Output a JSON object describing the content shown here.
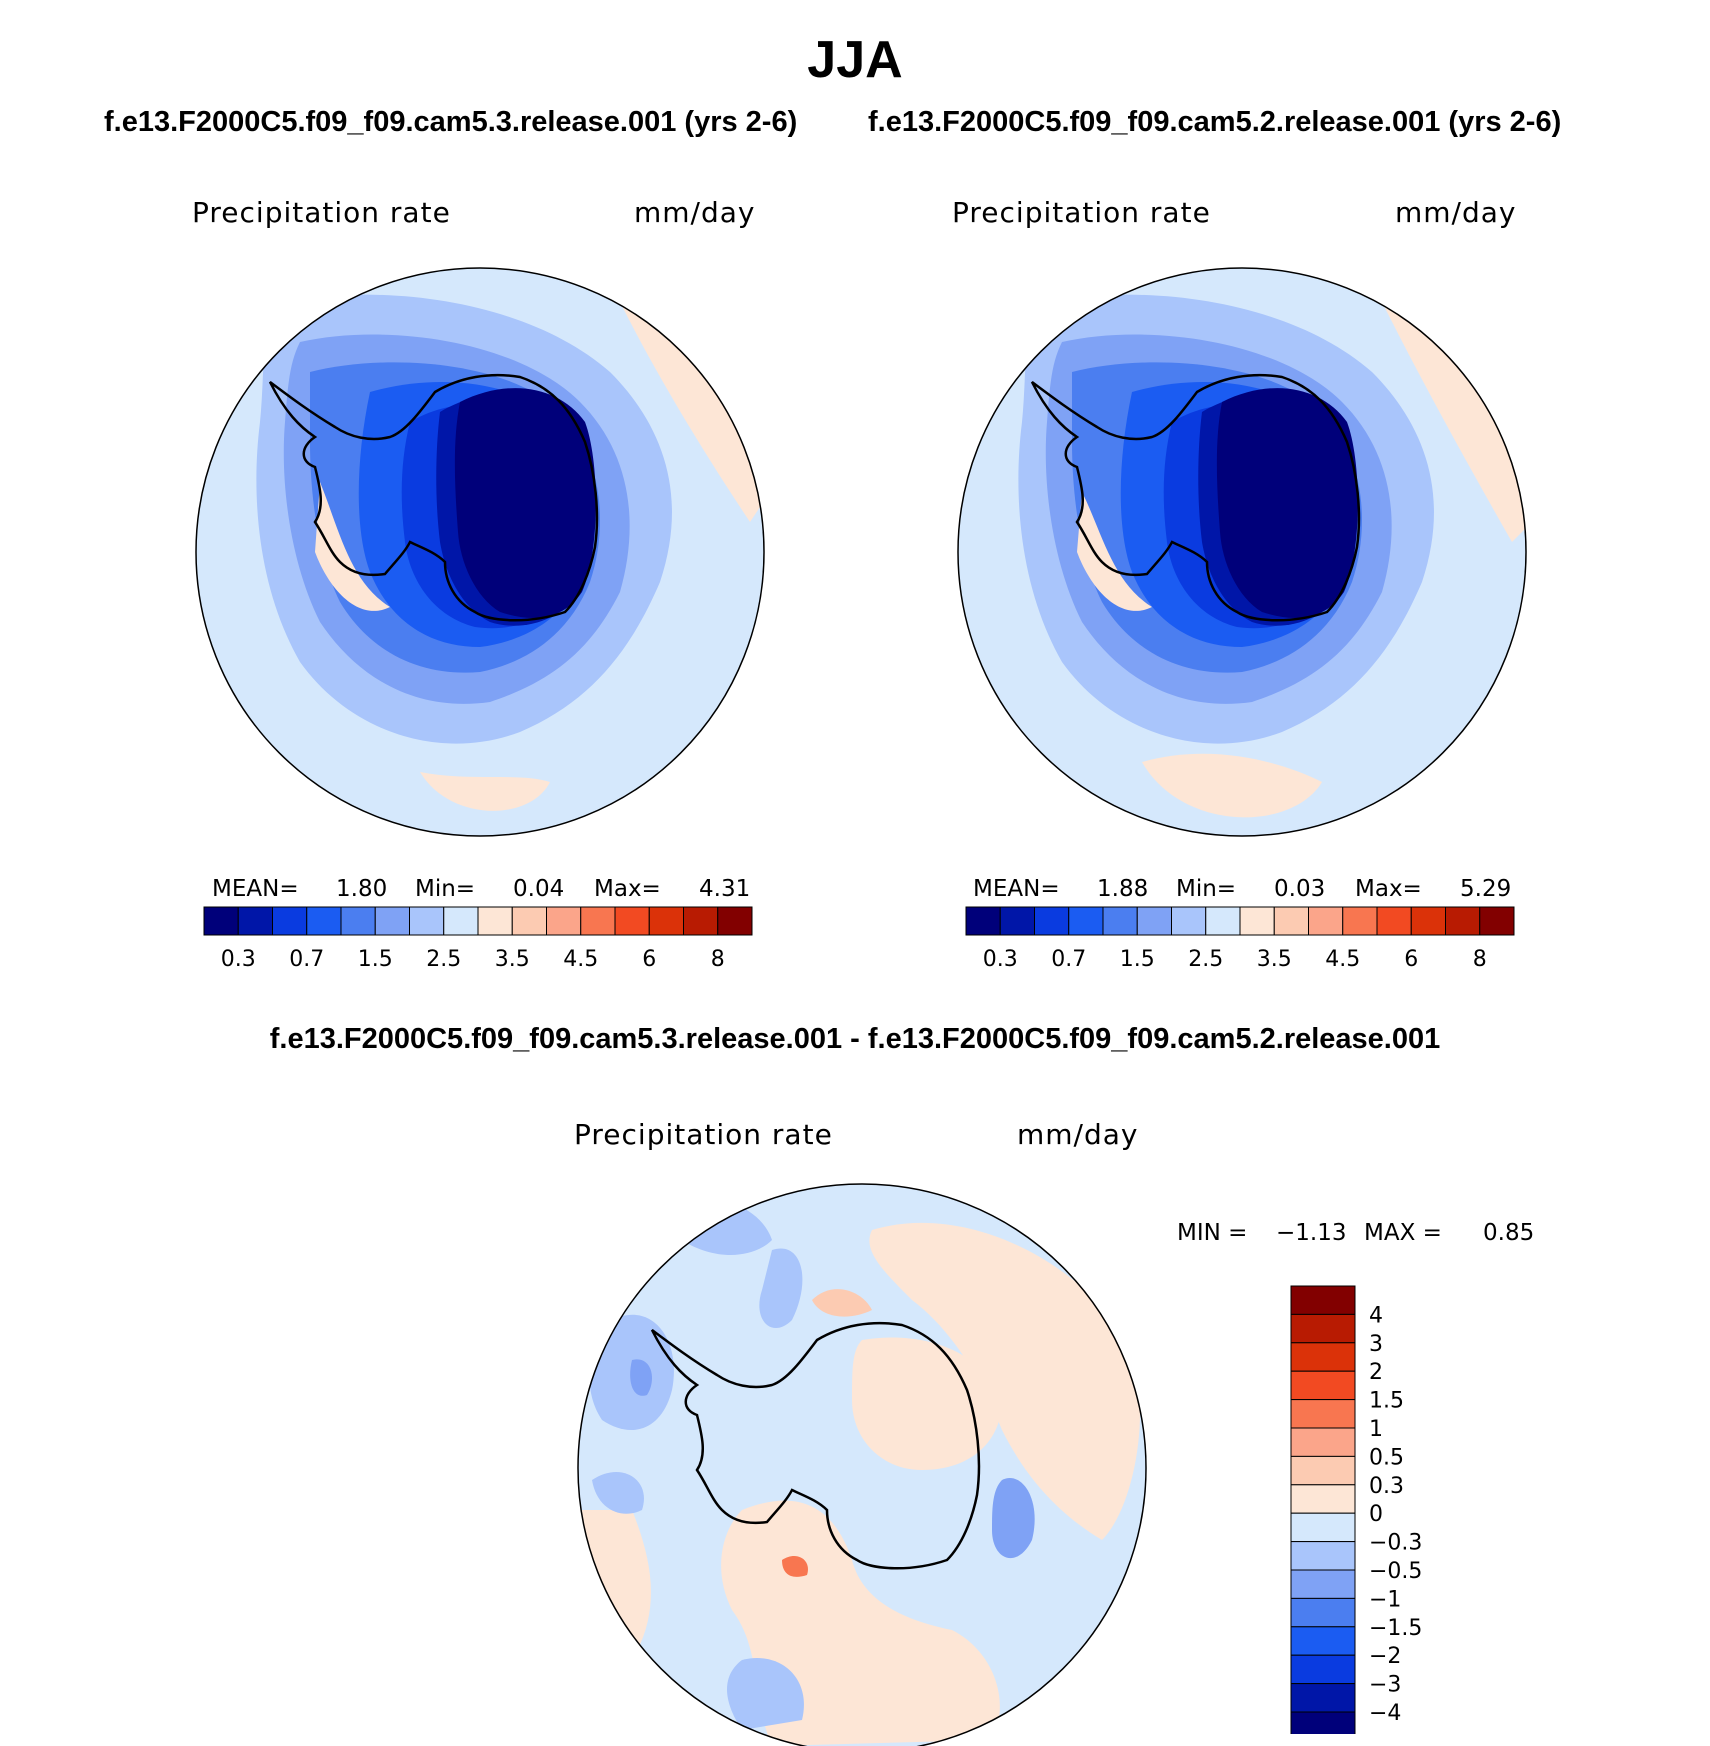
{
  "page_title": "JJA",
  "case_a": "f.e13.F2000C5.f09_f09.cam5.3.release.001 (yrs 2-6)",
  "case_b": "f.e13.F2000C5.f09_f09.cam5.2.release.001 (yrs 2-6)",
  "diff_title": "f.e13.F2000C5.f09_f09.cam5.3.release.001 - f.e13.F2000C5.f09_f09.cam5.2.release.001",
  "panels": [
    {
      "variable": "Precipitation  rate",
      "units": "mm/day",
      "mean_label": "MEAN=",
      "mean": "1.80",
      "min_label": "Min=",
      "min": "0.04",
      "max_label": "Max=",
      "max": "4.31"
    },
    {
      "variable": "Precipitation  rate",
      "units": "mm/day",
      "mean_label": "MEAN=",
      "mean": "1.88",
      "min_label": "Min=",
      "min": "0.03",
      "max_label": "Max=",
      "max": "5.29"
    }
  ],
  "diff_panel": {
    "variable": "Precipitation  rate",
    "units": "mm/day",
    "min_label": "MIN =",
    "min": "−1.13",
    "max_label": "MAX =",
    "max": "0.85"
  },
  "colorbar_abs": {
    "colors": [
      "#00007a",
      "#0016a8",
      "#0a3be0",
      "#1b5cf2",
      "#4b7ef0",
      "#7fa2f5",
      "#a9c5fb",
      "#d5e8fc",
      "#fde6d6",
      "#fccbb2",
      "#fba58a",
      "#f87650",
      "#f24a22",
      "#db3209",
      "#b81b02",
      "#820000"
    ],
    "labels": [
      "0.3",
      "0.7",
      "1.5",
      "2.5",
      "3.5",
      "4.5",
      "6",
      "8"
    ]
  },
  "colorbar_diff": {
    "colors_top_to_bottom": [
      "#820000",
      "#b81b02",
      "#db3209",
      "#f24a22",
      "#f87650",
      "#fba58a",
      "#fccbb2",
      "#fde6d6",
      "#d5e8fc",
      "#a9c5fb",
      "#7fa2f5",
      "#4b7ef0",
      "#1b5cf2",
      "#0a3be0",
      "#0016a8",
      "#00007a"
    ],
    "labels_top_to_bottom": [
      "4",
      "3",
      "2",
      "1.5",
      "1",
      "0.5",
      "0.3",
      "0",
      "−0.3",
      "−0.5",
      "−1",
      "−1.5",
      "−2",
      "−3",
      "−4"
    ]
  }
}
